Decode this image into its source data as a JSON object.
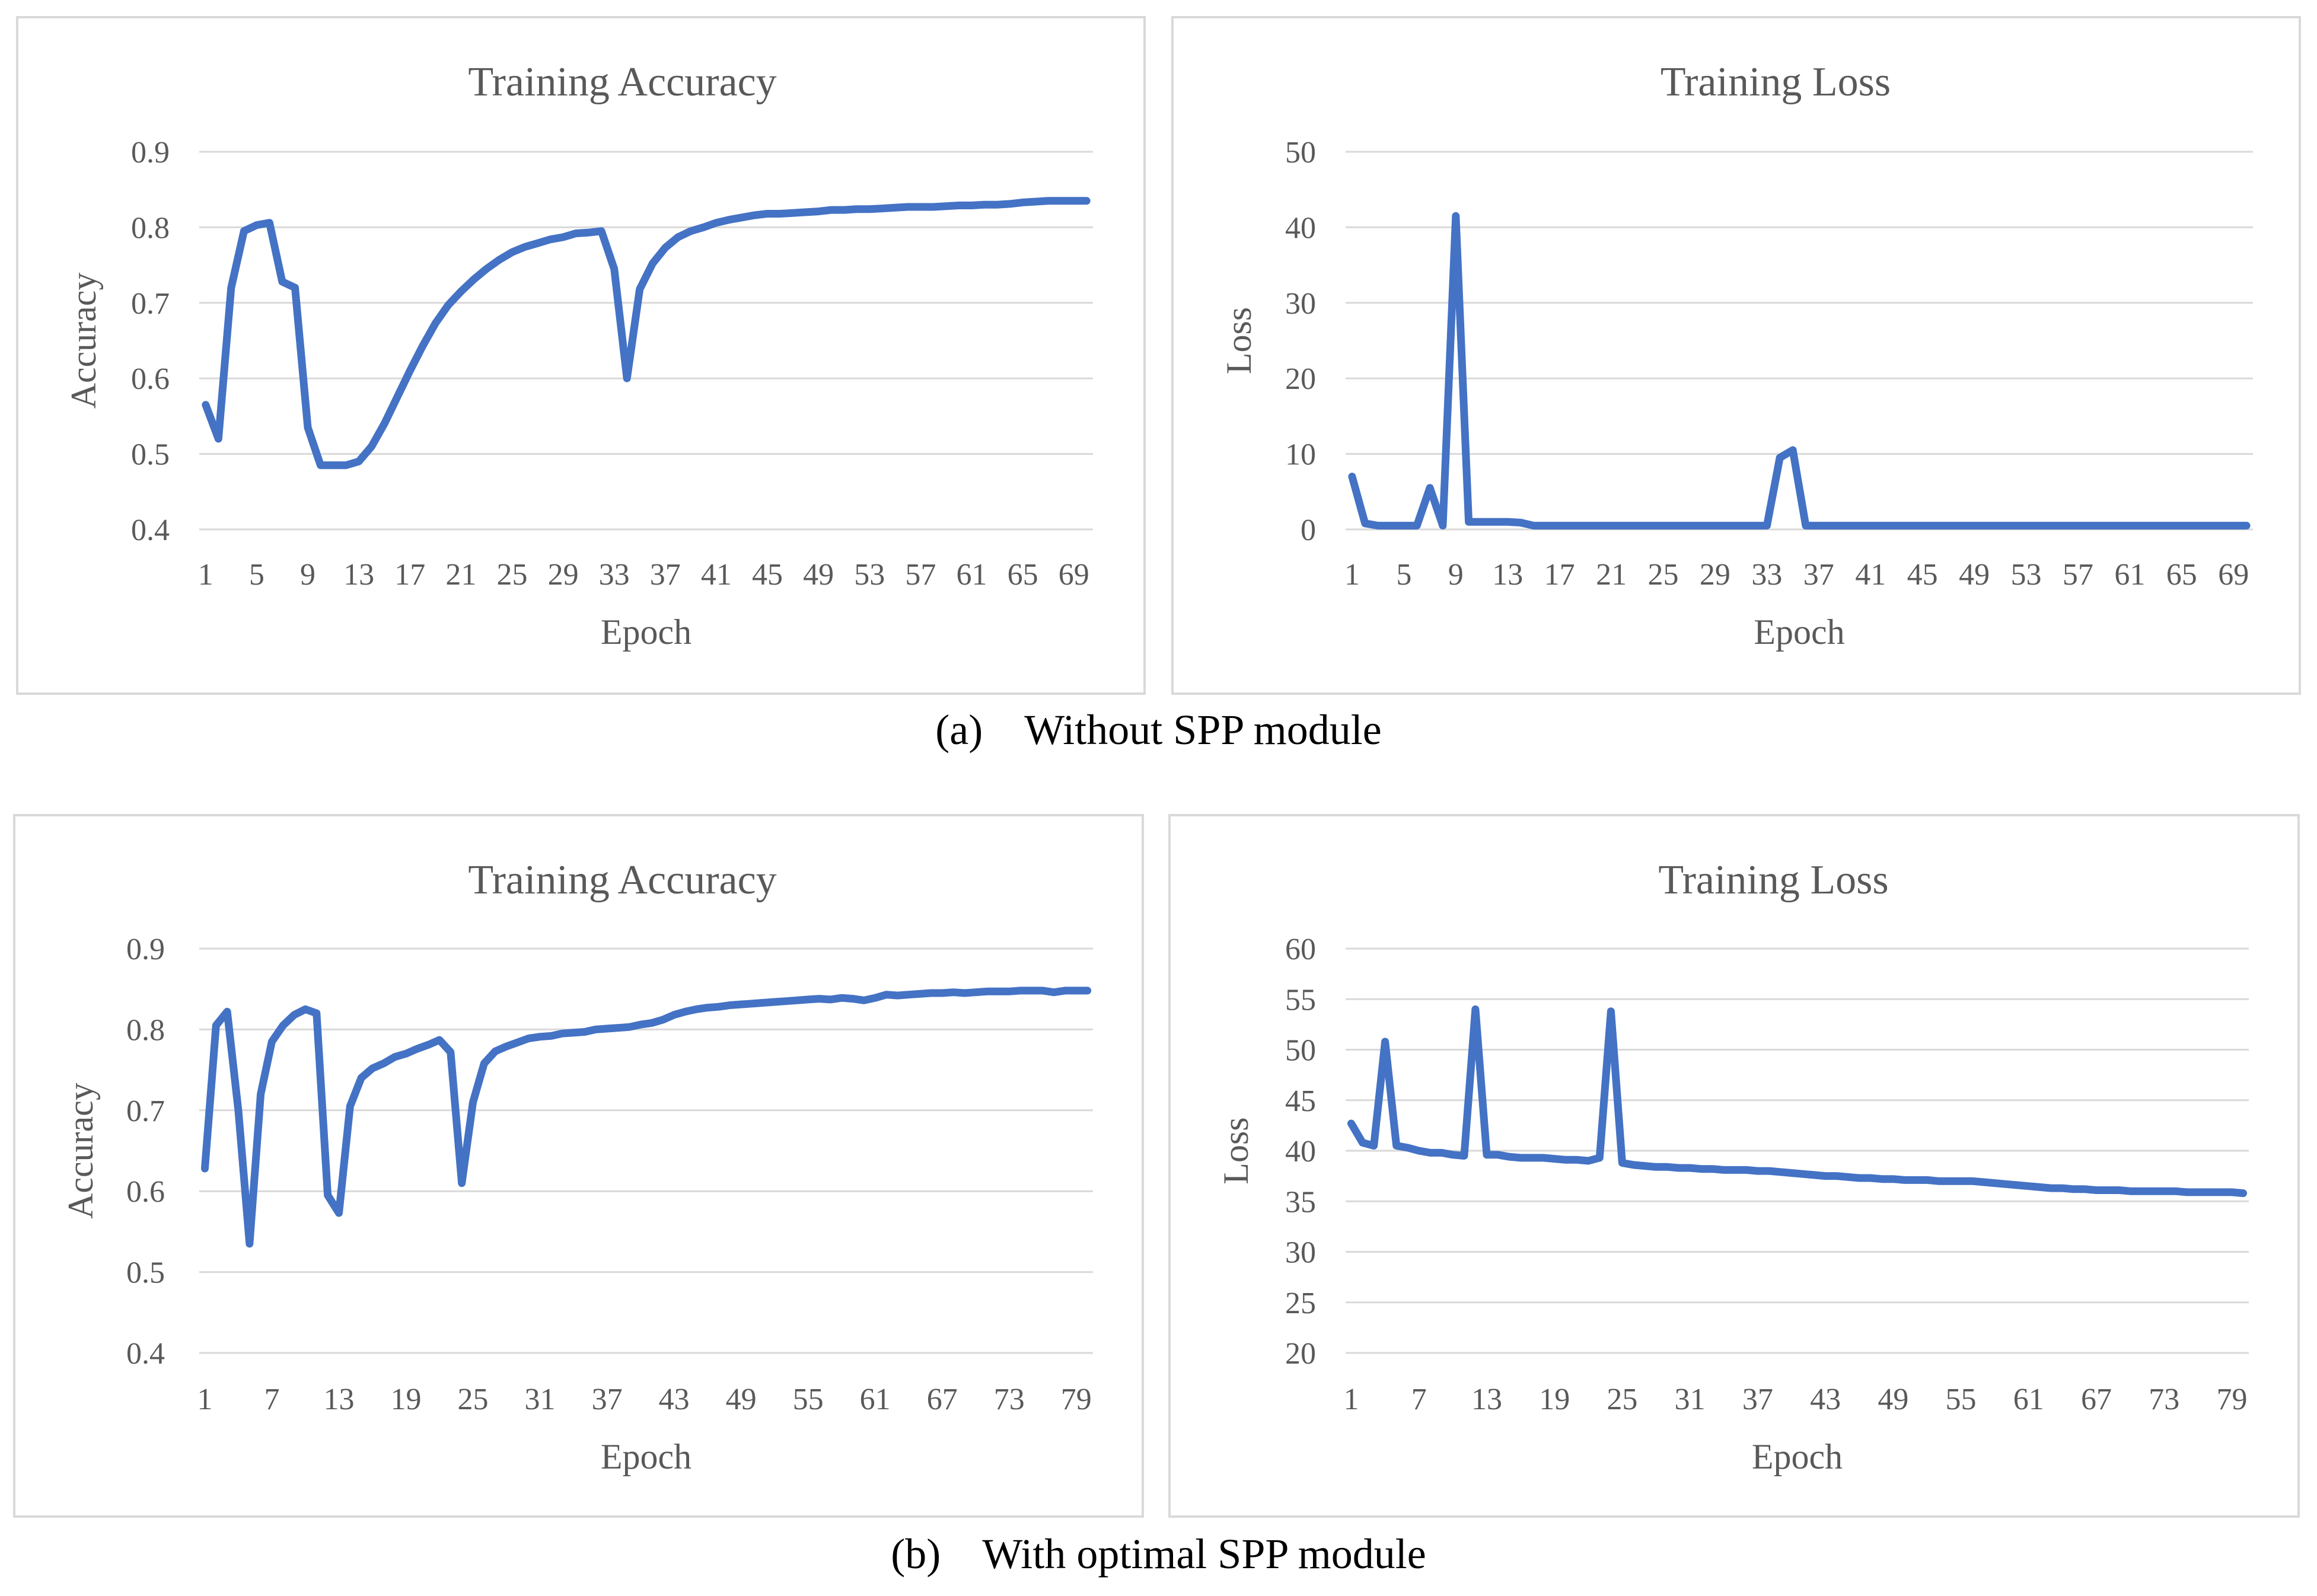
{
  "captions": {
    "a": {
      "tag": "(a)",
      "text": "Without SPP module"
    },
    "b": {
      "tag": "(b)",
      "text": "With optimal SPP module"
    }
  },
  "colors": {
    "series": "#4472c4",
    "grid": "#d9d9d9",
    "text": "#595959",
    "border": "#d9d9d9"
  },
  "chart_data": [
    {
      "id": "a-acc",
      "type": "line",
      "title": "Training Accuracy",
      "xlabel": "Epoch",
      "ylabel": "Accuracy",
      "ylim": [
        0.4,
        0.9
      ],
      "yticks": [
        0.4,
        0.5,
        0.6,
        0.7,
        0.8,
        0.9
      ],
      "ytick_labels": [
        "0.4",
        "0.5",
        "0.6",
        "0.7",
        "0.8",
        "0.9"
      ],
      "x_count": 70,
      "xtick_labels": [
        "1",
        "5",
        "9",
        "13",
        "17",
        "21",
        "25",
        "29",
        "33",
        "37",
        "41",
        "45",
        "49",
        "53",
        "57",
        "61",
        "65",
        "69"
      ],
      "xtick_step": 4,
      "grid": true,
      "series": [
        {
          "name": "Training Accuracy",
          "values": [
            0.565,
            0.52,
            0.72,
            0.795,
            0.803,
            0.806,
            0.728,
            0.72,
            0.535,
            0.485,
            0.485,
            0.485,
            0.49,
            0.51,
            0.54,
            0.575,
            0.61,
            0.643,
            0.673,
            0.697,
            0.715,
            0.731,
            0.745,
            0.757,
            0.767,
            0.774,
            0.779,
            0.784,
            0.787,
            0.792,
            0.793,
            0.795,
            0.745,
            0.6,
            0.718,
            0.752,
            0.773,
            0.787,
            0.795,
            0.8,
            0.806,
            0.81,
            0.813,
            0.816,
            0.818,
            0.818,
            0.819,
            0.82,
            0.821,
            0.823,
            0.823,
            0.824,
            0.824,
            0.825,
            0.826,
            0.827,
            0.827,
            0.827,
            0.828,
            0.829,
            0.829,
            0.83,
            0.83,
            0.831,
            0.833,
            0.834,
            0.835,
            0.835,
            0.835,
            0.835
          ]
        }
      ]
    },
    {
      "id": "a-loss",
      "type": "line",
      "title": "Training Loss",
      "xlabel": "Epoch",
      "ylabel": "Loss",
      "ylim": [
        0,
        50
      ],
      "yticks": [
        0,
        10,
        20,
        30,
        40,
        50
      ],
      "ytick_labels": [
        "0",
        "10",
        "20",
        "30",
        "40",
        "50"
      ],
      "x_count": 70,
      "xtick_labels": [
        "1",
        "5",
        "9",
        "13",
        "17",
        "21",
        "25",
        "29",
        "33",
        "37",
        "41",
        "45",
        "49",
        "53",
        "57",
        "61",
        "65",
        "69"
      ],
      "xtick_step": 4,
      "grid": true,
      "series": [
        {
          "name": "Training Loss",
          "values": [
            7,
            0.8,
            0.5,
            0.5,
            0.5,
            0.5,
            5.5,
            0.5,
            41.5,
            1,
            1,
            1,
            1,
            0.9,
            0.5,
            0.5,
            0.5,
            0.5,
            0.5,
            0.5,
            0.5,
            0.5,
            0.5,
            0.5,
            0.5,
            0.5,
            0.5,
            0.5,
            0.5,
            0.5,
            0.5,
            0.5,
            0.5,
            9.5,
            10.5,
            0.5,
            0.5,
            0.5,
            0.5,
            0.5,
            0.5,
            0.5,
            0.5,
            0.5,
            0.5,
            0.5,
            0.5,
            0.5,
            0.5,
            0.5,
            0.5,
            0.5,
            0.5,
            0.5,
            0.5,
            0.5,
            0.5,
            0.5,
            0.5,
            0.5,
            0.5,
            0.5,
            0.5,
            0.5,
            0.5,
            0.5,
            0.5,
            0.5,
            0.5,
            0.5
          ]
        }
      ]
    },
    {
      "id": "b-acc",
      "type": "line",
      "title": "Training Accuracy",
      "xlabel": "Epoch",
      "ylabel": "Accuracy",
      "ylim": [
        0.4,
        0.9
      ],
      "yticks": [
        0.4,
        0.5,
        0.6,
        0.7,
        0.8,
        0.9
      ],
      "ytick_labels": [
        "0.4",
        "0.5",
        "0.6",
        "0.7",
        "0.8",
        "0.9"
      ],
      "x_count": 80,
      "xtick_labels": [
        "1",
        "7",
        "13",
        "19",
        "25",
        "31",
        "37",
        "43",
        "49",
        "55",
        "61",
        "67",
        "73",
        "79"
      ],
      "xtick_step": 6,
      "grid": true,
      "series": [
        {
          "name": "Training Accuracy",
          "values": [
            0.628,
            0.805,
            0.822,
            0.7,
            0.535,
            0.72,
            0.785,
            0.805,
            0.818,
            0.825,
            0.82,
            0.595,
            0.573,
            0.705,
            0.74,
            0.752,
            0.758,
            0.766,
            0.77,
            0.776,
            0.781,
            0.787,
            0.772,
            0.61,
            0.71,
            0.758,
            0.773,
            0.779,
            0.784,
            0.789,
            0.791,
            0.792,
            0.795,
            0.796,
            0.797,
            0.8,
            0.801,
            0.802,
            0.803,
            0.806,
            0.808,
            0.812,
            0.818,
            0.822,
            0.825,
            0.827,
            0.828,
            0.83,
            0.831,
            0.832,
            0.833,
            0.834,
            0.835,
            0.836,
            0.837,
            0.838,
            0.837,
            0.839,
            0.838,
            0.836,
            0.839,
            0.843,
            0.842,
            0.843,
            0.844,
            0.845,
            0.845,
            0.846,
            0.845,
            0.846,
            0.847,
            0.847,
            0.847,
            0.848,
            0.848,
            0.848,
            0.846,
            0.848,
            0.848,
            0.848
          ]
        }
      ]
    },
    {
      "id": "b-loss",
      "type": "line",
      "title": "Training Loss",
      "xlabel": "Epoch",
      "ylabel": "Loss",
      "ylim": [
        20,
        60
      ],
      "yticks": [
        20,
        25,
        30,
        35,
        40,
        45,
        50,
        55,
        60
      ],
      "ytick_labels": [
        "20",
        "25",
        "30",
        "35",
        "40",
        "45",
        "50",
        "55",
        "60"
      ],
      "x_count": 80,
      "xtick_labels": [
        "1",
        "7",
        "13",
        "19",
        "25",
        "31",
        "37",
        "43",
        "49",
        "55",
        "61",
        "67",
        "73",
        "79"
      ],
      "xtick_step": 6,
      "grid": true,
      "series": [
        {
          "name": "Training Loss",
          "values": [
            42.7,
            40.8,
            40.5,
            50.8,
            40.5,
            40.3,
            40,
            39.8,
            39.8,
            39.6,
            39.5,
            54,
            39.6,
            39.6,
            39.4,
            39.3,
            39.3,
            39.3,
            39.2,
            39.1,
            39.1,
            39,
            39.3,
            53.8,
            38.8,
            38.6,
            38.5,
            38.4,
            38.4,
            38.3,
            38.3,
            38.2,
            38.2,
            38.1,
            38.1,
            38.1,
            38,
            38,
            37.9,
            37.8,
            37.7,
            37.6,
            37.5,
            37.5,
            37.4,
            37.3,
            37.3,
            37.2,
            37.2,
            37.1,
            37.1,
            37.1,
            37,
            37,
            37,
            37,
            36.9,
            36.8,
            36.7,
            36.6,
            36.5,
            36.4,
            36.3,
            36.3,
            36.2,
            36.2,
            36.1,
            36.1,
            36.1,
            36,
            36,
            36,
            36,
            36,
            35.9,
            35.9,
            35.9,
            35.9,
            35.9,
            35.8
          ]
        }
      ]
    }
  ]
}
